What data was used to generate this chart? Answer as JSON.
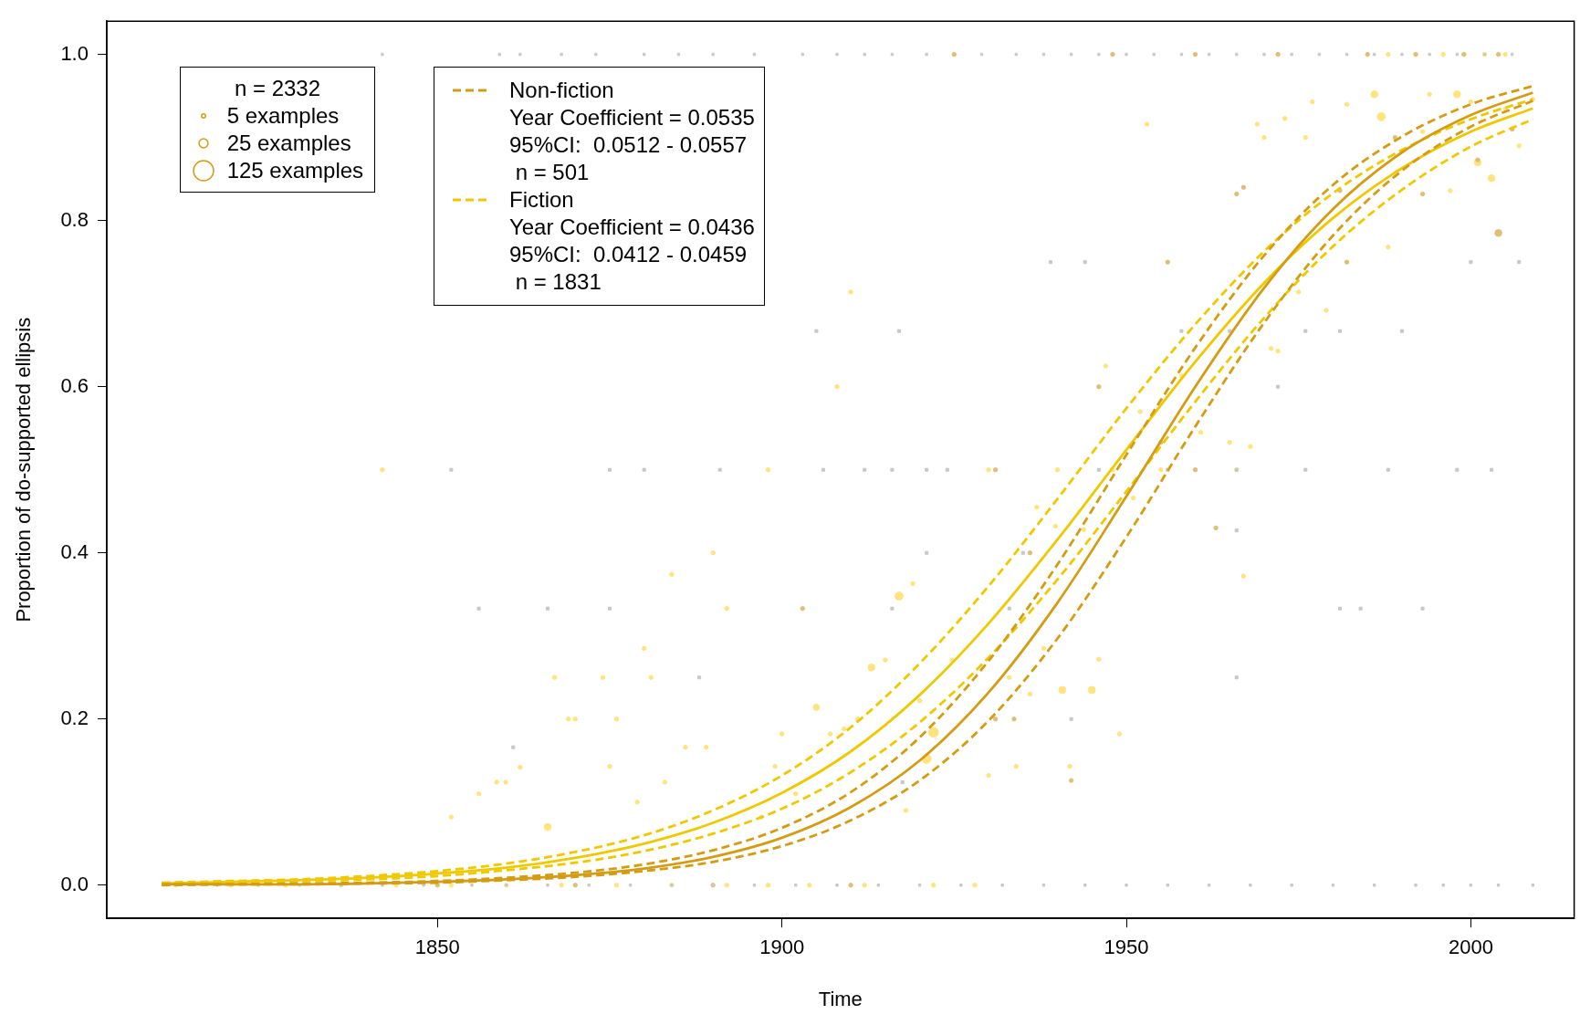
{
  "chart_data": {
    "type": "bubble",
    "xlabel": "Time",
    "ylabel": "Proportion of do-supported ellipsis",
    "legend": "top left",
    "legend_title": "n =  2332",
    "size_legend": [
      {
        "value": 5,
        "label": "5 examples"
      },
      {
        "value": 25,
        "label": "25 examples"
      },
      {
        "value": 125,
        "label": "125 examples"
      }
    ],
    "xlim": [
      1802,
      2015
    ],
    "xticks": [
      1850,
      1900,
      1950,
      2000
    ],
    "ylim": [
      -0.04,
      1.04
    ],
    "yticks": [
      {
        "value": 0,
        "label": "0.0"
      },
      {
        "value": 0.2,
        "label": "0.2"
      },
      {
        "value": 0.4,
        "label": "0.4"
      },
      {
        "value": 0.6,
        "label": "0.6"
      },
      {
        "value": 0.8,
        "label": "0.8"
      },
      {
        "value": 1,
        "label": "1.0"
      }
    ],
    "series": [
      {
        "type": "bubble",
        "color": "#c8c8c8",
        "marker": "square",
        "x": [
          1856,
          1861,
          1888,
          1905,
          1917,
          1921,
          1917.5,
          1942,
          1939,
          1944,
          1966,
          1972,
          1966,
          1993,
          2000,
          2007,
          1965,
          1976,
          1852,
          1875,
          1880,
          1891,
          1906,
          1912,
          1916,
          1921,
          1924,
          1946,
          1956,
          1966,
          1976,
          1988,
          1998,
          2003,
          1866,
          1875,
          1916,
          1933,
          1981,
          1984,
          1990,
          1958,
          1981,
          1935,
          1842,
          1859,
          1862,
          1868,
          1873,
          1880,
          1885,
          1890,
          1896,
          1903,
          1908,
          1912,
          1916,
          1921,
          1929,
          1934,
          1938,
          1942,
          1946,
          1950,
          1954,
          1958,
          1962,
          1966,
          1970,
          1974,
          1978,
          1982,
          1986,
          1990,
          1994,
          1998,
          2002,
          2006,
          1818,
          1824,
          1830,
          1836,
          1842,
          1848,
          1855,
          1860,
          1866,
          1872,
          1878,
          1884,
          1890,
          1896,
          1902,
          1908,
          1914,
          1920,
          1926,
          1932,
          1938,
          1944,
          1950,
          1956,
          1962,
          1968,
          1974,
          1980,
          1986,
          1992,
          1996,
          2000,
          2004,
          2009
        ],
        "values": [
          0.333,
          0.166,
          0.25,
          0.667,
          0.667,
          0.4,
          0.124,
          0.2,
          0.75,
          0.75,
          0.427,
          0.6,
          0.25,
          0.333,
          0.75,
          0.75,
          0.667,
          0.667,
          0.5,
          0.5,
          0.5,
          0.5,
          0.5,
          0.5,
          0.5,
          0.5,
          0.5,
          0.5,
          0.5,
          0.5,
          0.5,
          0.5,
          0.5,
          0.5,
          0.333,
          0.333,
          0.333,
          0.333,
          0.333,
          0.333,
          0.667,
          0.667,
          0.667,
          0.4,
          1,
          1,
          1,
          1,
          1,
          1,
          1,
          1,
          1,
          1,
          1,
          1,
          1,
          1,
          1,
          1,
          1,
          1,
          1,
          1,
          1,
          1,
          1,
          1,
          1,
          1,
          1,
          1,
          1,
          1,
          1,
          1,
          1,
          1,
          0,
          0,
          0,
          0,
          0,
          0,
          0,
          0,
          0,
          0,
          0,
          0,
          0,
          0,
          0,
          0,
          0,
          0,
          0,
          0,
          0,
          0,
          0,
          0,
          0,
          0,
          0,
          0,
          0,
          0,
          0,
          0,
          0,
          0
        ],
        "sizes": [
          5,
          5,
          5,
          5,
          5,
          5,
          5,
          5,
          5,
          5,
          5,
          5,
          5,
          5,
          5,
          5,
          5,
          5,
          5,
          5,
          5,
          5,
          5,
          5,
          5,
          5,
          5,
          5,
          5,
          5,
          5,
          5,
          5,
          5,
          5,
          5,
          5,
          5,
          5,
          5,
          5,
          5,
          5,
          5,
          3,
          3,
          3,
          3,
          3,
          3,
          3,
          3,
          3,
          3,
          3,
          3,
          3,
          3,
          3,
          3,
          3,
          3,
          3,
          3,
          3,
          3,
          3,
          3,
          3,
          3,
          3,
          3,
          3,
          3,
          3,
          3,
          3,
          3,
          3,
          3,
          3,
          3,
          3,
          3,
          3,
          3,
          3,
          3,
          3,
          3,
          3,
          3,
          3,
          3,
          3,
          3,
          3,
          3,
          3,
          3,
          3,
          3,
          3,
          3,
          3,
          3,
          3,
          3,
          3,
          3,
          3,
          3
        ]
      },
      {
        "type": "bubble",
        "color": "#dfbf78",
        "marker": "circle",
        "x": [
          1903,
          1931,
          1933.7,
          1936,
          1942,
          1946,
          1955,
          1956,
          1963,
          1966,
          1967,
          1981,
          1989,
          1993,
          2001,
          2004,
          2006,
          1982,
          1925,
          1948,
          1960,
          1972,
          1985,
          1992,
          1999,
          2004,
          1850,
          1870,
          1890,
          1910,
          1931,
          1960
        ],
        "values": [
          0.333,
          0.2,
          0.2,
          0.4,
          0.126,
          0.6,
          0.533,
          0.75,
          0.43,
          0.832,
          0.84,
          0.836,
          0.9,
          0.832,
          0.873,
          0.785,
          0.91,
          0.75,
          1,
          1,
          1,
          1,
          1,
          1,
          1,
          1,
          0,
          0,
          0,
          0,
          0.5,
          0.5
        ],
        "sizes": [
          5,
          5,
          5,
          5,
          5,
          5,
          5,
          5,
          5,
          5,
          5,
          5,
          5,
          5,
          5,
          15,
          5,
          5,
          5,
          5,
          5,
          5,
          5,
          5,
          5,
          5,
          5,
          5,
          5,
          5,
          5,
          5
        ]
      },
      {
        "type": "bubble",
        "color": "#ffe47e",
        "marker": "circle",
        "x": [
          1852,
          1856,
          1858.6,
          1859.9,
          1862,
          1866,
          1867,
          1869,
          1870,
          1874,
          1875,
          1876,
          1879,
          1880,
          1881,
          1883,
          1884,
          1886,
          1889,
          1890,
          1892,
          1897,
          1898,
          1899,
          1900,
          1902,
          1905,
          1907,
          1908,
          1910,
          1909,
          1911,
          1913,
          1915,
          1917,
          1919,
          1920,
          1921,
          1922,
          1918,
          1924.7,
          1930,
          1933,
          1934,
          1936,
          1937,
          1938,
          1939.7,
          1940.7,
          1941.8,
          1943.8,
          1945,
          1946,
          1947,
          1949,
          1951,
          1952,
          1953,
          1958,
          1960.8,
          1965,
          1967,
          1968,
          1969,
          1970,
          1971,
          1972,
          1973,
          1975,
          1976,
          1977,
          1979,
          1982,
          1986,
          1987,
          1988,
          1993,
          1994,
          1997,
          1998,
          2000,
          2001,
          2003,
          2005,
          2007,
          2009,
          1988,
          1992,
          1996,
          1999,
          2002,
          2005,
          1812,
          1820,
          1828,
          1836,
          1844,
          1852,
          1860,
          1868,
          1876,
          1884,
          1892,
          1898,
          1904,
          1912,
          1922,
          1928,
          1842,
          1930,
          1940,
          1948,
          1955,
          1966
        ],
        "values": [
          0.082,
          0.11,
          0.124,
          0.124,
          0.142,
          0.07,
          0.25,
          0.2,
          0.2,
          0.25,
          0.143,
          0.2,
          0.1,
          0.285,
          0.25,
          0.124,
          0.374,
          0.166,
          0.166,
          0.4,
          0.333,
          0.082,
          0.5,
          0.143,
          0.182,
          0.11,
          0.214,
          0.182,
          0.6,
          0.714,
          0.188,
          0.2,
          0.262,
          0.271,
          0.348,
          0.363,
          0.222,
          0.152,
          0.184,
          0.09,
          0.271,
          0.132,
          0.25,
          0.143,
          0.23,
          0.455,
          0.285,
          0.432,
          0.235,
          0.143,
          0.428,
          0.235,
          0.272,
          0.625,
          0.182,
          0.466,
          0.57,
          0.916,
          0.613,
          0.545,
          0.533,
          0.372,
          0.528,
          0.916,
          0.9,
          0.646,
          0.643,
          0.923,
          0.714,
          0.9,
          0.943,
          0.692,
          0.94,
          0.952,
          0.925,
          0.768,
          0.907,
          0.952,
          0.836,
          0.952,
          0.943,
          0.87,
          0.851,
          0.934,
          0.89,
          0.946,
          1,
          1,
          1,
          1,
          1,
          1,
          0,
          0,
          0,
          0,
          0,
          0,
          0,
          0,
          0,
          0,
          0,
          0,
          0,
          0,
          0,
          0,
          0.5,
          0.5,
          0.5,
          0.5,
          0.5,
          0.5
        ],
        "sizes": [
          5,
          5,
          5,
          5,
          5,
          15,
          5,
          5,
          5,
          5,
          5,
          5,
          5,
          5,
          5,
          5,
          5,
          5,
          5,
          5,
          5,
          5,
          5,
          5,
          5,
          5,
          12,
          5,
          5,
          5,
          5,
          5,
          15,
          5,
          20,
          5,
          5,
          25,
          30,
          5,
          5,
          5,
          5,
          5,
          5,
          5,
          5,
          5,
          15,
          5,
          5,
          15,
          5,
          5,
          5,
          5,
          5,
          5,
          5,
          5,
          5,
          5,
          5,
          5,
          5,
          5,
          5,
          5,
          5,
          5,
          5,
          5,
          5,
          15,
          20,
          5,
          5,
          5,
          5,
          15,
          5,
          15,
          15,
          5,
          5,
          5,
          5,
          5,
          5,
          5,
          5,
          5,
          5,
          5,
          5,
          5,
          5,
          5,
          5,
          5,
          5,
          5,
          5,
          5,
          5,
          5,
          5,
          5,
          5,
          5,
          5,
          5,
          5,
          5
        ]
      },
      {
        "type": "line",
        "color": "#d49c12",
        "line_style": "solid",
        "x": [
          1810,
          1820,
          1830,
          1840,
          1850,
          1860,
          1870,
          1880,
          1890,
          1900,
          1910,
          1920,
          1930,
          1940,
          1950,
          1960,
          1970,
          1980,
          1990,
          2000,
          2009
        ],
        "values": [
          0.001,
          0.001,
          0.001,
          0.002,
          0.004,
          0.007,
          0.012,
          0.02,
          0.034,
          0.057,
          0.094,
          0.15,
          0.232,
          0.34,
          0.468,
          0.6,
          0.719,
          0.814,
          0.882,
          0.927,
          0.954
        ]
      },
      {
        "type": "line",
        "name": "Non-fiction\nYear Coefficient = 0.0535\n95%CI:  0.0512 - 0.0557\n n = 501",
        "color": "#d49c12",
        "line_style": "dashed",
        "x": [
          1810,
          1820,
          1830,
          1840,
          1850,
          1860,
          1870,
          1880,
          1890,
          1900,
          1910,
          1920,
          1930,
          1940,
          1950,
          1960,
          1970,
          1980,
          1990,
          2000,
          2009
        ],
        "values": [
          0.001,
          0.001,
          0.002,
          0.003,
          0.005,
          0.009,
          0.015,
          0.025,
          0.042,
          0.069,
          0.112,
          0.178,
          0.27,
          0.386,
          0.518,
          0.647,
          0.758,
          0.843,
          0.901,
          0.94,
          0.962
        ]
      },
      {
        "type": "line",
        "color": "#d49c12",
        "line_style": "dashed",
        "x": [
          1810,
          1820,
          1830,
          1840,
          1850,
          1860,
          1870,
          1880,
          1890,
          1900,
          1910,
          1920,
          1930,
          1940,
          1950,
          1960,
          1970,
          1980,
          1990,
          2000,
          2009
        ],
        "values": [
          0,
          0.001,
          0.001,
          0.002,
          0.003,
          0.006,
          0.01,
          0.017,
          0.028,
          0.047,
          0.078,
          0.126,
          0.198,
          0.297,
          0.419,
          0.552,
          0.677,
          0.782,
          0.86,
          0.913,
          0.944
        ]
      },
      {
        "type": "line",
        "color": "#f0c800",
        "line_style": "solid",
        "x": [
          1810,
          1820,
          1830,
          1840,
          1850,
          1860,
          1870,
          1880,
          1890,
          1900,
          1910,
          1920,
          1930,
          1940,
          1950,
          1960,
          1970,
          1980,
          1990,
          2000,
          2009
        ],
        "values": [
          0.002,
          0.004,
          0.006,
          0.009,
          0.014,
          0.021,
          0.033,
          0.05,
          0.075,
          0.111,
          0.161,
          0.229,
          0.315,
          0.416,
          0.524,
          0.63,
          0.725,
          0.803,
          0.863,
          0.907,
          0.935
        ]
      },
      {
        "type": "line",
        "name": "Fiction\nYear Coefficient = 0.0436\n95%CI:  0.0412 - 0.0459\n n = 1831",
        "color": "#f0c800",
        "line_style": "dashed",
        "x": [
          1810,
          1820,
          1830,
          1840,
          1850,
          1860,
          1870,
          1880,
          1890,
          1900,
          1910,
          1920,
          1930,
          1940,
          1950,
          1960,
          1970,
          1980,
          1990,
          2000,
          2009
        ],
        "values": [
          0.003,
          0.005,
          0.007,
          0.011,
          0.017,
          0.026,
          0.04,
          0.06,
          0.09,
          0.132,
          0.19,
          0.267,
          0.36,
          0.465,
          0.574,
          0.675,
          0.763,
          0.833,
          0.885,
          0.922,
          0.946
        ]
      },
      {
        "type": "line",
        "color": "#f0c800",
        "line_style": "dashed",
        "x": [
          1810,
          1820,
          1830,
          1840,
          1850,
          1860,
          1870,
          1880,
          1890,
          1900,
          1910,
          1920,
          1930,
          1940,
          1950,
          1960,
          1970,
          1980,
          1990,
          2000,
          2009
        ],
        "values": [
          0.002,
          0.003,
          0.005,
          0.007,
          0.011,
          0.018,
          0.027,
          0.041,
          0.062,
          0.092,
          0.136,
          0.196,
          0.274,
          0.368,
          0.474,
          0.582,
          0.683,
          0.769,
          0.837,
          0.889,
          0.922
        ]
      }
    ]
  }
}
